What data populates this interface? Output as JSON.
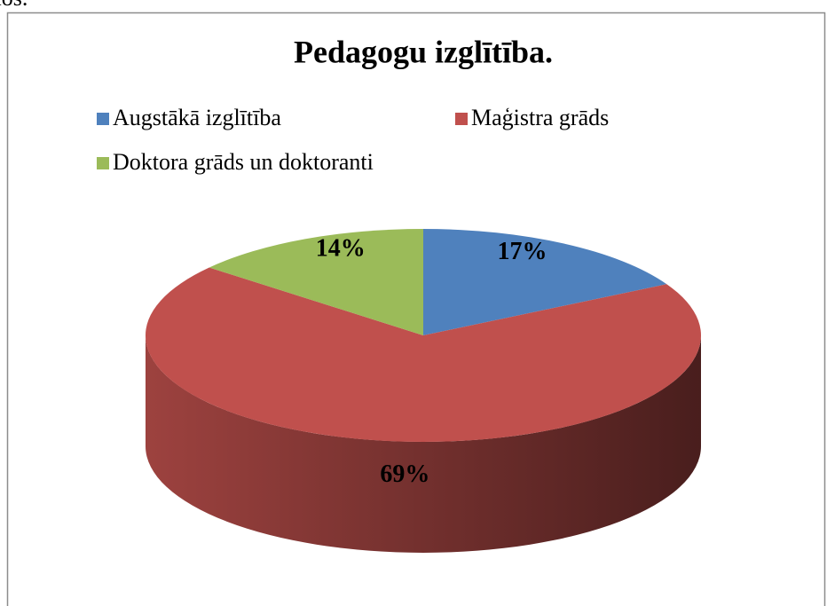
{
  "page_text": "amos.",
  "chart_data": {
    "type": "pie",
    "title": "Pedagogu izglītība.",
    "categories": [
      "Augstākā izglītība",
      "Maģistra grāds",
      "Doktora grāds un doktoranti"
    ],
    "values": [
      17,
      69,
      14
    ],
    "value_labels": [
      "17%",
      "69%",
      "14%"
    ],
    "colors": [
      "#4f81bd",
      "#c0504d",
      "#9bbb59"
    ],
    "legend": "top"
  }
}
